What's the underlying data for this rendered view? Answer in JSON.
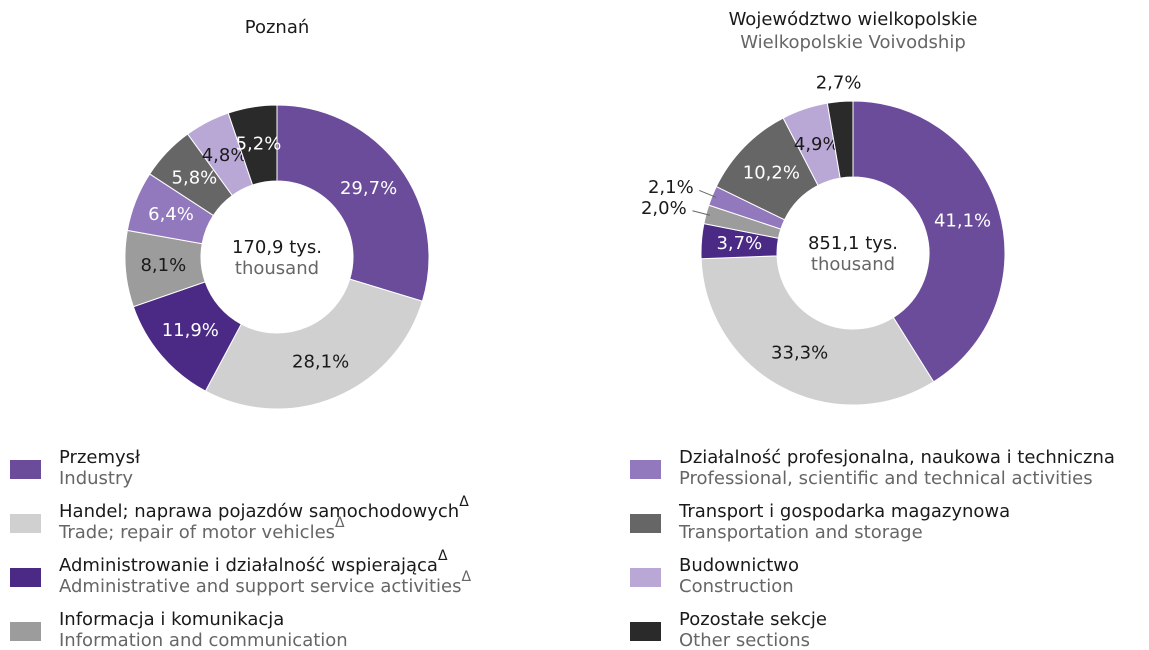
{
  "chart_data": [
    {
      "type": "pie",
      "title": "Poznań",
      "center_label": "170,9 tys.",
      "center_label_en": "thousand",
      "values": [
        29.7,
        28.1,
        11.9,
        8.1,
        6.4,
        5.8,
        4.8,
        5.2
      ],
      "value_labels": [
        "29,7%",
        "28,1%",
        "11,9%",
        "8,1%",
        "6,4%",
        "5,8%",
        "4,8%",
        "5,2%"
      ],
      "colors": [
        "#6b4c9a",
        "#d0d0d0",
        "#4b2a85",
        "#9c9c9c",
        "#9278bd",
        "#666666",
        "#b9a8d6",
        "#2a2a2a"
      ]
    },
    {
      "type": "pie",
      "title": "Województwo wielkopolskie",
      "subtitle": "Wielkopolskie Voivodship",
      "center_label": "851,1 tys.",
      "center_label_en": "thousand",
      "values": [
        41.1,
        33.3,
        3.7,
        2.0,
        2.1,
        10.2,
        4.9,
        2.7
      ],
      "value_labels": [
        "41,1%",
        "33,3%",
        "3,7%",
        "2,0%",
        "2,1%",
        "10,2%",
        "4,9%",
        "2,7%"
      ],
      "colors": [
        "#6b4c9a",
        "#d0d0d0",
        "#4b2a85",
        "#9c9c9c",
        "#9278bd",
        "#666666",
        "#b9a8d6",
        "#2a2a2a"
      ]
    }
  ],
  "legend": {
    "items": [
      {
        "name": "Przemysł",
        "name_en": "Industry",
        "color": "#6b4c9a"
      },
      {
        "name": "Handel; naprawa pojazdów samochodowych",
        "name_en": "Trade; repair of motor vehicles",
        "mark": "Δ",
        "color": "#d0d0d0"
      },
      {
        "name": "Administrowanie i działalność wspierająca",
        "name_en": "Administrative and support service activities",
        "mark": "Δ",
        "color": "#4b2a85"
      },
      {
        "name": "Informacja i komunikacja",
        "name_en": "Information and communication",
        "color": "#9c9c9c"
      },
      {
        "name": "Działalność profesjonalna, naukowa i techniczna",
        "name_en": "Professional, scientific and technical activities",
        "color": "#9278bd"
      },
      {
        "name": "Transport i gospodarka magazynowa",
        "name_en": "Transportation and storage",
        "color": "#666666"
      },
      {
        "name": "Budownictwo",
        "name_en": "Construction",
        "color": "#b9a8d6"
      },
      {
        "name": "Pozostałe sekcje",
        "name_en": "Other sections",
        "color": "#2a2a2a"
      }
    ]
  }
}
